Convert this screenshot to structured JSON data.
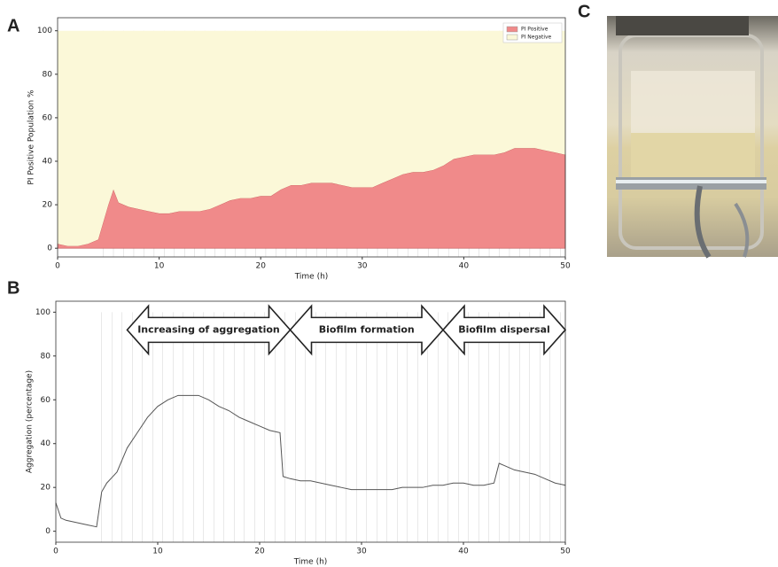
{
  "panel_labels": [
    "A",
    "B",
    "C"
  ],
  "chart_data": [
    {
      "type": "area",
      "stacked": true,
      "xlabel": "Time (h)",
      "ylabel": "PI Positive Population %",
      "x": [
        0,
        1,
        2,
        3,
        4,
        5,
        5.5,
        6,
        7,
        8,
        9,
        10,
        11,
        12,
        13,
        14,
        15,
        16,
        17,
        18,
        19,
        20,
        21,
        22,
        23,
        24,
        25,
        26,
        27,
        28,
        29,
        30,
        31,
        32,
        33,
        34,
        35,
        36,
        37,
        38,
        39,
        40,
        41,
        42,
        43,
        44,
        45,
        46,
        47,
        48,
        49,
        50
      ],
      "series": [
        {
          "name": "PI Positive",
          "color": "#f08a8a",
          "values": [
            2,
            1,
            1,
            2,
            4,
            20,
            27,
            21,
            19,
            18,
            17,
            16,
            16,
            17,
            17,
            17,
            18,
            20,
            22,
            23,
            23,
            24,
            24,
            27,
            29,
            29,
            30,
            30,
            30,
            29,
            28,
            28,
            28,
            30,
            32,
            34,
            35,
            35,
            36,
            38,
            41,
            42,
            43,
            43,
            43,
            44,
            46,
            46,
            46,
            45,
            44,
            43
          ]
        },
        {
          "name": "PI Negative",
          "color": "#fbf8d8",
          "values": [
            98,
            99,
            99,
            98,
            96,
            80,
            73,
            79,
            81,
            82,
            83,
            84,
            84,
            83,
            83,
            83,
            82,
            80,
            78,
            77,
            77,
            76,
            76,
            73,
            71,
            71,
            70,
            70,
            70,
            71,
            72,
            72,
            72,
            70,
            68,
            66,
            65,
            65,
            64,
            62,
            59,
            58,
            57,
            57,
            57,
            56,
            54,
            54,
            54,
            55,
            56,
            57
          ]
        }
      ],
      "xlim": [
        0,
        50
      ],
      "xticks": [
        0,
        10,
        20,
        30,
        40,
        50
      ],
      "ylim": [
        -4,
        106
      ],
      "yticks": [
        0,
        20,
        40,
        60,
        80,
        100
      ],
      "legend": "upper right"
    },
    {
      "type": "line",
      "xlabel": "Time (h)",
      "ylabel": "Aggregation (percentage)",
      "x": [
        0,
        0.5,
        1,
        2,
        3,
        4,
        4.5,
        5,
        6,
        7,
        8,
        9,
        10,
        11,
        12,
        13,
        14,
        15,
        16,
        17,
        18,
        19,
        20,
        21,
        22,
        22.3,
        23,
        24,
        25,
        26,
        27,
        28,
        29,
        30,
        31,
        32,
        33,
        34,
        35,
        36,
        37,
        38,
        39,
        40,
        41,
        42,
        43,
        43.5,
        44,
        45,
        46,
        47,
        48,
        49,
        50
      ],
      "values": [
        13,
        6,
        5,
        4,
        3,
        2,
        18,
        22,
        27,
        38,
        45,
        52,
        57,
        60,
        62,
        62,
        62,
        60,
        57,
        55,
        52,
        50,
        48,
        46,
        45,
        25,
        24,
        23,
        23,
        22,
        21,
        20,
        19,
        19,
        19,
        19,
        19,
        20,
        20,
        20,
        21,
        21,
        22,
        22,
        21,
        21,
        22,
        31,
        30,
        28,
        27,
        26,
        24,
        22,
        21
      ],
      "color": "#555555",
      "xlim": [
        0,
        50
      ],
      "xticks": [
        0,
        10,
        20,
        30,
        40,
        50
      ],
      "ylim": [
        -5,
        105
      ],
      "yticks": [
        0,
        20,
        40,
        60,
        80,
        100
      ],
      "annotations": [
        {
          "text": "Increasing of aggregation",
          "xrange": [
            7,
            23
          ]
        },
        {
          "text": "Biofilm formation",
          "xrange": [
            23,
            38
          ]
        },
        {
          "text": "Biofilm dispersal",
          "xrange": [
            38,
            50
          ]
        }
      ]
    }
  ]
}
